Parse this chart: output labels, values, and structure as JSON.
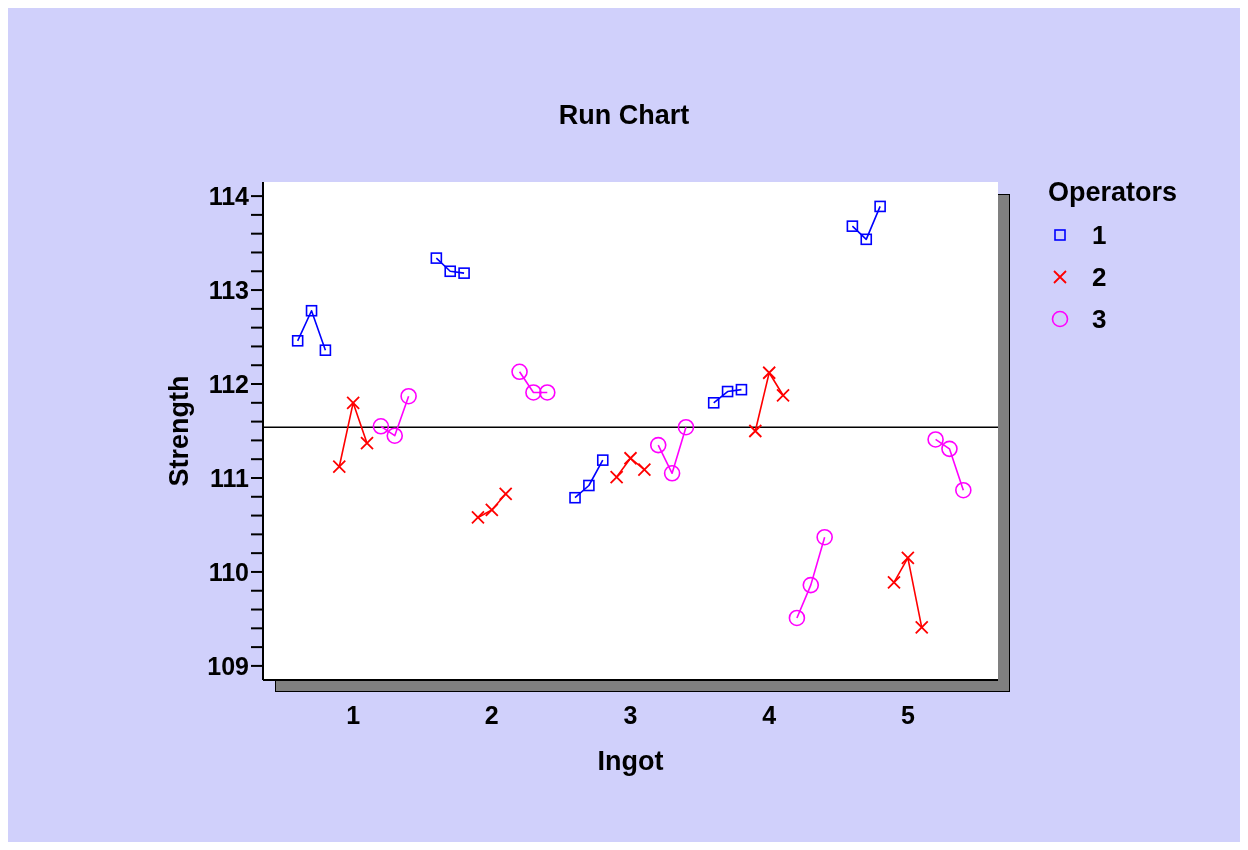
{
  "chart_data": {
    "type": "line",
    "title": "Run Chart",
    "xlabel": "Ingot",
    "ylabel": "Strength",
    "legend_title": "Operators",
    "legend": "top right",
    "grid": false,
    "xlim": [
      0.35,
      5.65
    ],
    "xticks": [
      1,
      2,
      3,
      4,
      5
    ],
    "ylim": [
      108.85,
      114.15
    ],
    "yticks": [
      {
        "value": 109,
        "label": "109"
      },
      {
        "value": 109.2,
        "label": null
      },
      {
        "value": 109.4,
        "label": null
      },
      {
        "value": 109.6,
        "label": null
      },
      {
        "value": 109.8,
        "label": null
      },
      {
        "value": 110,
        "label": "110"
      },
      {
        "value": 110.2,
        "label": null
      },
      {
        "value": 110.4,
        "label": null
      },
      {
        "value": 110.6,
        "label": null
      },
      {
        "value": 110.8,
        "label": null
      },
      {
        "value": 111,
        "label": "111"
      },
      {
        "value": 111.2,
        "label": null
      },
      {
        "value": 111.4,
        "label": null
      },
      {
        "value": 111.6,
        "label": null
      },
      {
        "value": 111.8,
        "label": null
      },
      {
        "value": 112,
        "label": "112"
      },
      {
        "value": 112.2,
        "label": null
      },
      {
        "value": 112.4,
        "label": null
      },
      {
        "value": 112.6,
        "label": null
      },
      {
        "value": 112.8,
        "label": null
      },
      {
        "value": 113,
        "label": "113"
      },
      {
        "value": 113.2,
        "label": null
      },
      {
        "value": 113.4,
        "label": null
      },
      {
        "value": 113.6,
        "label": null
      },
      {
        "value": 113.8,
        "label": null
      },
      {
        "value": 114,
        "label": "114"
      }
    ],
    "ref_lines": [
      {
        "axis": "y",
        "value": 111.54,
        "color": "#000000"
      }
    ],
    "series": [
      {
        "name": "1",
        "color": "#0000ff",
        "marker": "square",
        "x": [
          0.6,
          0.7,
          0.8,
          1.2,
          1.6,
          1.7,
          1.8,
          2.2,
          2.6,
          2.7,
          2.8,
          3.2,
          3.6,
          3.7,
          3.8,
          4.2,
          4.6,
          4.7,
          4.8
        ],
        "values": [
          112.46,
          112.78,
          112.36,
          null,
          113.34,
          113.2,
          113.18,
          null,
          110.79,
          110.92,
          111.19,
          null,
          111.8,
          111.92,
          111.94,
          null,
          113.68,
          113.54,
          113.89
        ]
      },
      {
        "name": "2",
        "color": "#ff0000",
        "marker": "cross",
        "x": [
          0.9,
          1.0,
          1.1,
          1.5,
          1.9,
          2.0,
          2.1,
          2.5,
          2.9,
          3.0,
          3.1,
          3.5,
          3.9,
          4.0,
          4.1,
          4.5,
          4.9,
          5.0,
          5.1
        ],
        "values": [
          111.12,
          111.8,
          111.37,
          null,
          110.58,
          110.66,
          110.83,
          null,
          111.01,
          111.21,
          111.09,
          null,
          111.5,
          112.12,
          111.88,
          null,
          109.89,
          110.15,
          109.41
        ]
      },
      {
        "name": "3",
        "color": "#ff00ff",
        "marker": "circle",
        "x": [
          1.2,
          1.3,
          1.4,
          1.8,
          2.2,
          2.3,
          2.4,
          2.8,
          3.2,
          3.3,
          3.4,
          3.8,
          4.2,
          4.3,
          4.4,
          4.8,
          5.2,
          5.3,
          5.4
        ],
        "values": [
          111.55,
          111.45,
          111.87,
          null,
          112.13,
          111.91,
          111.91,
          null,
          111.35,
          111.05,
          111.54,
          null,
          109.51,
          109.86,
          110.37,
          null,
          111.41,
          111.31,
          110.87
        ]
      }
    ]
  }
}
